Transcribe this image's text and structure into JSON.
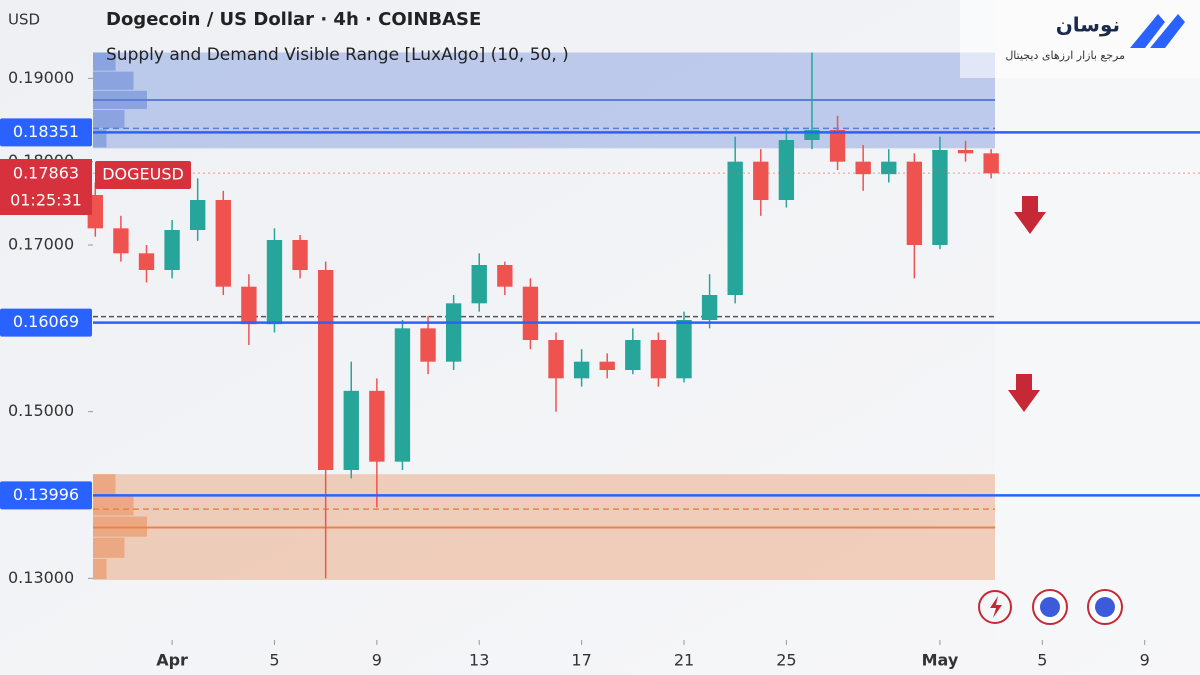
{
  "chart_data": {
    "type": "candlestick",
    "title": "Dogecoin / US Dollar · 4h · COINBASE",
    "subtitle": "Supply and Demand Visible Range [LuxAlgo] (10, 50, )",
    "axis_unit": "USD",
    "symbol": "DOGEUSD",
    "last_price": 0.17863,
    "countdown": "01:25:31",
    "up_color": "#26a69a",
    "down_color": "#ef5350",
    "x": [
      -3,
      -2,
      -1,
      0,
      1,
      2,
      3,
      4,
      5,
      6,
      7,
      8,
      9,
      10,
      11,
      12,
      13,
      14,
      15,
      16,
      17,
      18,
      19,
      20,
      21,
      22,
      23,
      24,
      25,
      26,
      27,
      28,
      29,
      30,
      31,
      32
    ],
    "open": [
      0.176,
      0.172,
      0.169,
      0.167,
      0.1718,
      0.1754,
      0.165,
      0.1605,
      0.1706,
      0.167,
      0.143,
      0.1525,
      0.144,
      0.16,
      0.156,
      0.163,
      0.1676,
      0.165,
      0.1586,
      0.154,
      0.156,
      0.155,
      0.1586,
      0.154,
      0.161,
      0.164,
      0.18,
      0.1754,
      0.1826,
      0.1838,
      0.18,
      0.1785,
      0.18,
      0.17,
      0.1814,
      0.181
    ],
    "high": [
      0.1775,
      0.1735,
      0.17,
      0.173,
      0.178,
      0.1765,
      0.1665,
      0.172,
      0.1712,
      0.168,
      0.156,
      0.154,
      0.161,
      0.1615,
      0.164,
      0.169,
      0.168,
      0.166,
      0.1595,
      0.1575,
      0.157,
      0.16,
      0.1595,
      0.162,
      0.1665,
      0.183,
      0.1815,
      0.184,
      0.1931,
      0.1855,
      0.182,
      0.1815,
      0.181,
      0.183,
      0.1825,
      0.1815
    ],
    "low": [
      0.171,
      0.168,
      0.1655,
      0.166,
      0.1705,
      0.164,
      0.158,
      0.1595,
      0.166,
      0.13,
      0.142,
      0.1385,
      0.143,
      0.1545,
      0.155,
      0.162,
      0.164,
      0.1575,
      0.15,
      0.153,
      0.154,
      0.1545,
      0.153,
      0.1535,
      0.16,
      0.163,
      0.1735,
      0.1745,
      0.1815,
      0.179,
      0.1765,
      0.1775,
      0.166,
      0.1695,
      0.18,
      0.178
    ],
    "close": [
      0.172,
      0.169,
      0.167,
      0.1718,
      0.1754,
      0.165,
      0.1605,
      0.1706,
      0.167,
      0.143,
      0.1525,
      0.144,
      0.16,
      0.156,
      0.163,
      0.1676,
      0.165,
      0.1586,
      0.154,
      0.156,
      0.155,
      0.1586,
      0.154,
      0.161,
      0.164,
      0.18,
      0.1754,
      0.1826,
      0.1838,
      0.18,
      0.1785,
      0.18,
      0.17,
      0.1814,
      0.181,
      0.1786
    ],
    "xlim": [
      -3.09,
      40.16
    ],
    "xticks": [
      {
        "value": 0,
        "label": "Apr"
      },
      {
        "value": 4,
        "label": "5"
      },
      {
        "value": 8,
        "label": "9"
      },
      {
        "value": 12,
        "label": "13"
      },
      {
        "value": 16,
        "label": "17"
      },
      {
        "value": 20,
        "label": "21"
      },
      {
        "value": 24,
        "label": "25"
      },
      {
        "value": 30,
        "label": "May"
      },
      {
        "value": 34,
        "label": "5"
      },
      {
        "value": 38,
        "label": "9"
      }
    ],
    "ylim": [
      0.1226,
      0.1994
    ],
    "yticks": [
      {
        "value": 0.19,
        "label": "0.19000"
      },
      {
        "value": 0.18,
        "label": "0.18000"
      },
      {
        "value": 0.17,
        "label": "0.17000"
      },
      {
        "value": 0.15,
        "label": "0.15000"
      },
      {
        "value": 0.13,
        "label": "0.13000"
      }
    ],
    "levels": [
      {
        "value": 0.18351,
        "color": "#2962ff"
      },
      {
        "value": 0.16069,
        "color": "#2962ff"
      },
      {
        "value": 0.13996,
        "color": "#2962ff"
      }
    ],
    "equilibrium": 0.1614,
    "zones": [
      {
        "top": 0.1931,
        "bottom": 0.1816,
        "line": 0.1874,
        "average": 0.184,
        "color": "#5b7fd6"
      },
      {
        "top": 0.1425,
        "bottom": 0.1298,
        "line": 0.1361,
        "average": 0.1383,
        "color": "#e8834a"
      }
    ]
  },
  "brand": {
    "name": "نوسان",
    "tagline": "مرجع بازار ارزهای دیجیتال"
  }
}
